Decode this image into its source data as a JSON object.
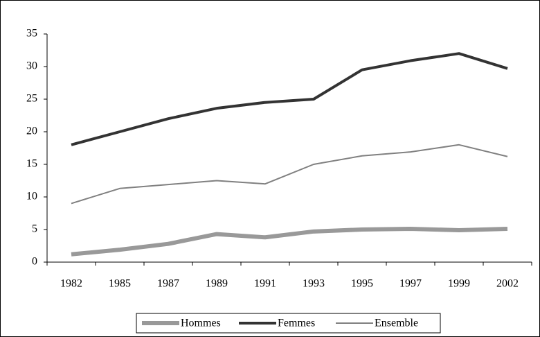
{
  "chart_data": {
    "type": "line",
    "categories": [
      "1982",
      "1985",
      "1987",
      "1989",
      "1991",
      "1993",
      "1995",
      "1997",
      "1999",
      "2002"
    ],
    "series": [
      {
        "name": "Hommes",
        "color": "#999999",
        "values": [
          1.2,
          1.9,
          2.8,
          4.3,
          3.8,
          4.7,
          5.0,
          5.1,
          4.9,
          5.1
        ]
      },
      {
        "name": "Femmes",
        "color": "#333333",
        "values": [
          18,
          20,
          22,
          23.6,
          24.5,
          25,
          29.5,
          30.9,
          32,
          29.7
        ]
      },
      {
        "name": "Ensemble",
        "color": "#808080",
        "values": [
          9,
          11.3,
          11.9,
          12.5,
          12,
          15,
          16.3,
          16.9,
          18,
          16.2
        ]
      }
    ],
    "ylim": [
      0,
      35
    ],
    "yticks": [
      0,
      5,
      10,
      15,
      20,
      25,
      30,
      35
    ],
    "grid": false,
    "legend": "bottom"
  }
}
